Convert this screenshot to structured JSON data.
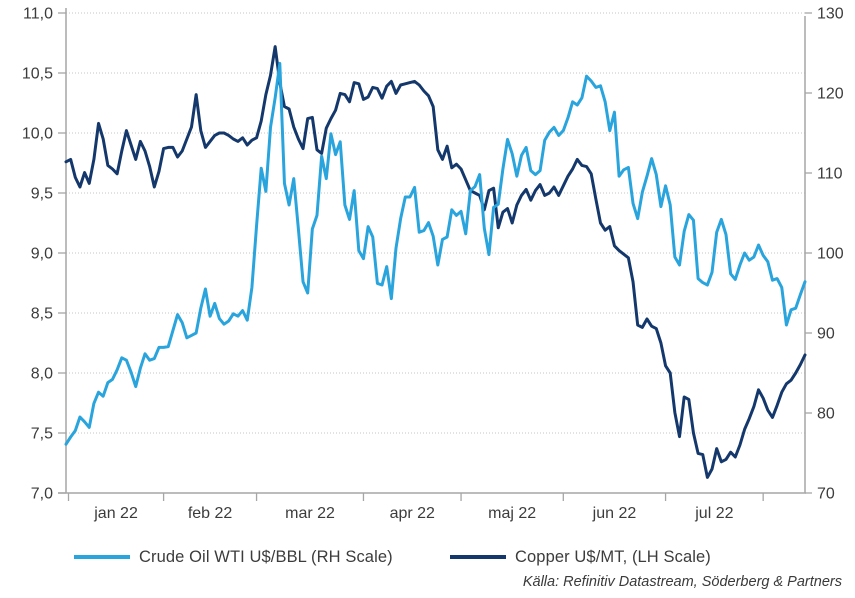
{
  "chart_data": {
    "type": "line",
    "title": "",
    "grid": "horizontal-dotted",
    "legend_position": "bottom",
    "x": {
      "month_labels": [
        "jan 22",
        "feb 22",
        "mar 22",
        "apr 22",
        "maj 22",
        "jun 22",
        "jul 22"
      ],
      "month_start_indices": [
        0,
        21,
        41,
        64,
        85,
        107,
        129,
        150
      ],
      "points_per_series": 160
    },
    "left_axis": {
      "min": 7.0,
      "max": 11.0,
      "tick_values": [
        7.0,
        7.5,
        8.0,
        8.5,
        9.0,
        9.5,
        10.0,
        10.5,
        11.0
      ],
      "tick_labels": [
        "7,0",
        "7,5",
        "8,0",
        "8,5",
        "9,0",
        "9,5",
        "10,0",
        "10,5",
        "11,0"
      ]
    },
    "right_axis": {
      "min": 70,
      "max": 130,
      "tick_values": [
        70,
        80,
        90,
        100,
        110,
        120,
        130
      ],
      "tick_labels": [
        "70",
        "80",
        "90",
        "100",
        "110",
        "120",
        "130"
      ]
    },
    "series": [
      {
        "name": "Crude Oil WTI U$/BBL (RH Scale)",
        "axis": "right",
        "color": "#2aa4dc",
        "values": [
          76.1,
          77.0,
          77.8,
          79.5,
          78.9,
          78.2,
          81.2,
          82.6,
          82.1,
          83.8,
          84.2,
          85.4,
          86.9,
          86.6,
          85.1,
          83.3,
          85.6,
          87.4,
          86.6,
          86.8,
          88.2,
          88.2,
          88.3,
          90.3,
          92.3,
          91.3,
          89.4,
          89.7,
          90.0,
          93.1,
          95.5,
          92.1,
          93.7,
          91.8,
          91.1,
          91.5,
          92.4,
          92.1,
          92.8,
          91.6,
          95.7,
          103.4,
          110.6,
          107.7,
          115.7,
          119.4,
          123.7,
          108.7,
          106.0,
          109.3,
          103.0,
          96.4,
          95.0,
          103.0,
          104.7,
          112.1,
          109.3,
          114.9,
          112.3,
          113.9,
          106.0,
          104.2,
          107.8,
          100.3,
          99.3,
          103.3,
          102.0,
          96.2,
          96.0,
          98.3,
          94.3,
          100.6,
          104.3,
          107.0,
          107.0,
          108.2,
          102.6,
          102.8,
          103.8,
          102.1,
          98.5,
          101.7,
          102.0,
          105.4,
          104.7,
          105.2,
          102.4,
          107.8,
          108.3,
          109.8,
          103.1,
          99.8,
          105.7,
          106.1,
          110.5,
          114.2,
          112.4,
          109.6,
          112.2,
          113.2,
          110.3,
          109.8,
          110.3,
          114.1,
          115.1,
          115.7,
          114.7,
          115.3,
          116.9,
          118.9,
          118.5,
          119.4,
          122.1,
          121.5,
          120.7,
          120.9,
          118.9,
          115.3,
          117.6,
          109.6,
          110.4,
          110.7,
          106.2,
          104.3,
          107.6,
          109.6,
          111.8,
          109.8,
          105.8,
          108.4,
          106.0,
          99.5,
          98.5,
          102.7,
          104.8,
          104.1,
          96.8,
          96.3,
          96.0,
          97.6,
          102.6,
          104.2,
          102.3,
          97.4,
          96.7,
          98.5,
          100.0,
          99.1,
          99.5,
          101.0,
          99.7,
          98.9,
          96.6,
          96.8,
          95.7,
          91.0,
          92.9,
          93.1,
          94.8,
          96.4
        ]
      },
      {
        "name": "Copper U$/MT, (LH Scale)",
        "axis": "left",
        "color": "#14386b",
        "values": [
          9.76,
          9.78,
          9.63,
          9.55,
          9.67,
          9.58,
          9.78,
          10.08,
          9.95,
          9.73,
          9.7,
          9.66,
          9.85,
          10.02,
          9.9,
          9.78,
          9.93,
          9.85,
          9.72,
          9.55,
          9.68,
          9.87,
          9.88,
          9.88,
          9.8,
          9.85,
          9.95,
          10.05,
          10.32,
          10.02,
          9.88,
          9.93,
          9.98,
          10.0,
          10.0,
          9.98,
          9.95,
          9.93,
          9.96,
          9.9,
          9.94,
          9.96,
          10.1,
          10.32,
          10.48,
          10.72,
          10.42,
          10.22,
          10.2,
          10.05,
          9.95,
          9.87,
          10.12,
          10.13,
          9.86,
          9.83,
          10.04,
          10.12,
          10.19,
          10.33,
          10.32,
          10.26,
          10.42,
          10.41,
          10.28,
          10.3,
          10.38,
          10.37,
          10.29,
          10.39,
          10.43,
          10.33,
          10.4,
          10.41,
          10.42,
          10.43,
          10.4,
          10.35,
          10.31,
          10.22,
          9.86,
          9.78,
          9.89,
          9.71,
          9.74,
          9.7,
          9.61,
          9.52,
          9.5,
          9.48,
          9.36,
          9.52,
          9.54,
          9.21,
          9.34,
          9.37,
          9.25,
          9.4,
          9.48,
          9.53,
          9.44,
          9.52,
          9.57,
          9.48,
          9.5,
          9.55,
          9.48,
          9.56,
          9.64,
          9.7,
          9.78,
          9.73,
          9.72,
          9.66,
          9.45,
          9.25,
          9.19,
          9.22,
          9.06,
          9.02,
          8.99,
          8.96,
          8.76,
          8.4,
          8.38,
          8.45,
          8.39,
          8.37,
          8.25,
          8.06,
          8.0,
          7.67,
          7.47,
          7.8,
          7.78,
          7.5,
          7.33,
          7.32,
          7.13,
          7.2,
          7.37,
          7.26,
          7.28,
          7.34,
          7.3,
          7.4,
          7.53,
          7.62,
          7.72,
          7.86,
          7.79,
          7.69,
          7.63,
          7.73,
          7.84,
          7.91,
          7.94,
          8.0,
          8.07,
          8.15
        ]
      }
    ],
    "style": {
      "grid_color": "#c6c6c6",
      "axis_color": "#a6a6a6",
      "tick_label_color": "#3c3c3c"
    }
  },
  "legend": {
    "items": [
      {
        "label": "Crude Oil WTI U$/BBL (RH Scale)",
        "color": "#2aa4dc"
      },
      {
        "label": "Copper U$/MT, (LH Scale)",
        "color": "#14386b"
      }
    ]
  },
  "source": {
    "text": "Källa: Refinitiv Datastream, Söderberg & Partners"
  }
}
